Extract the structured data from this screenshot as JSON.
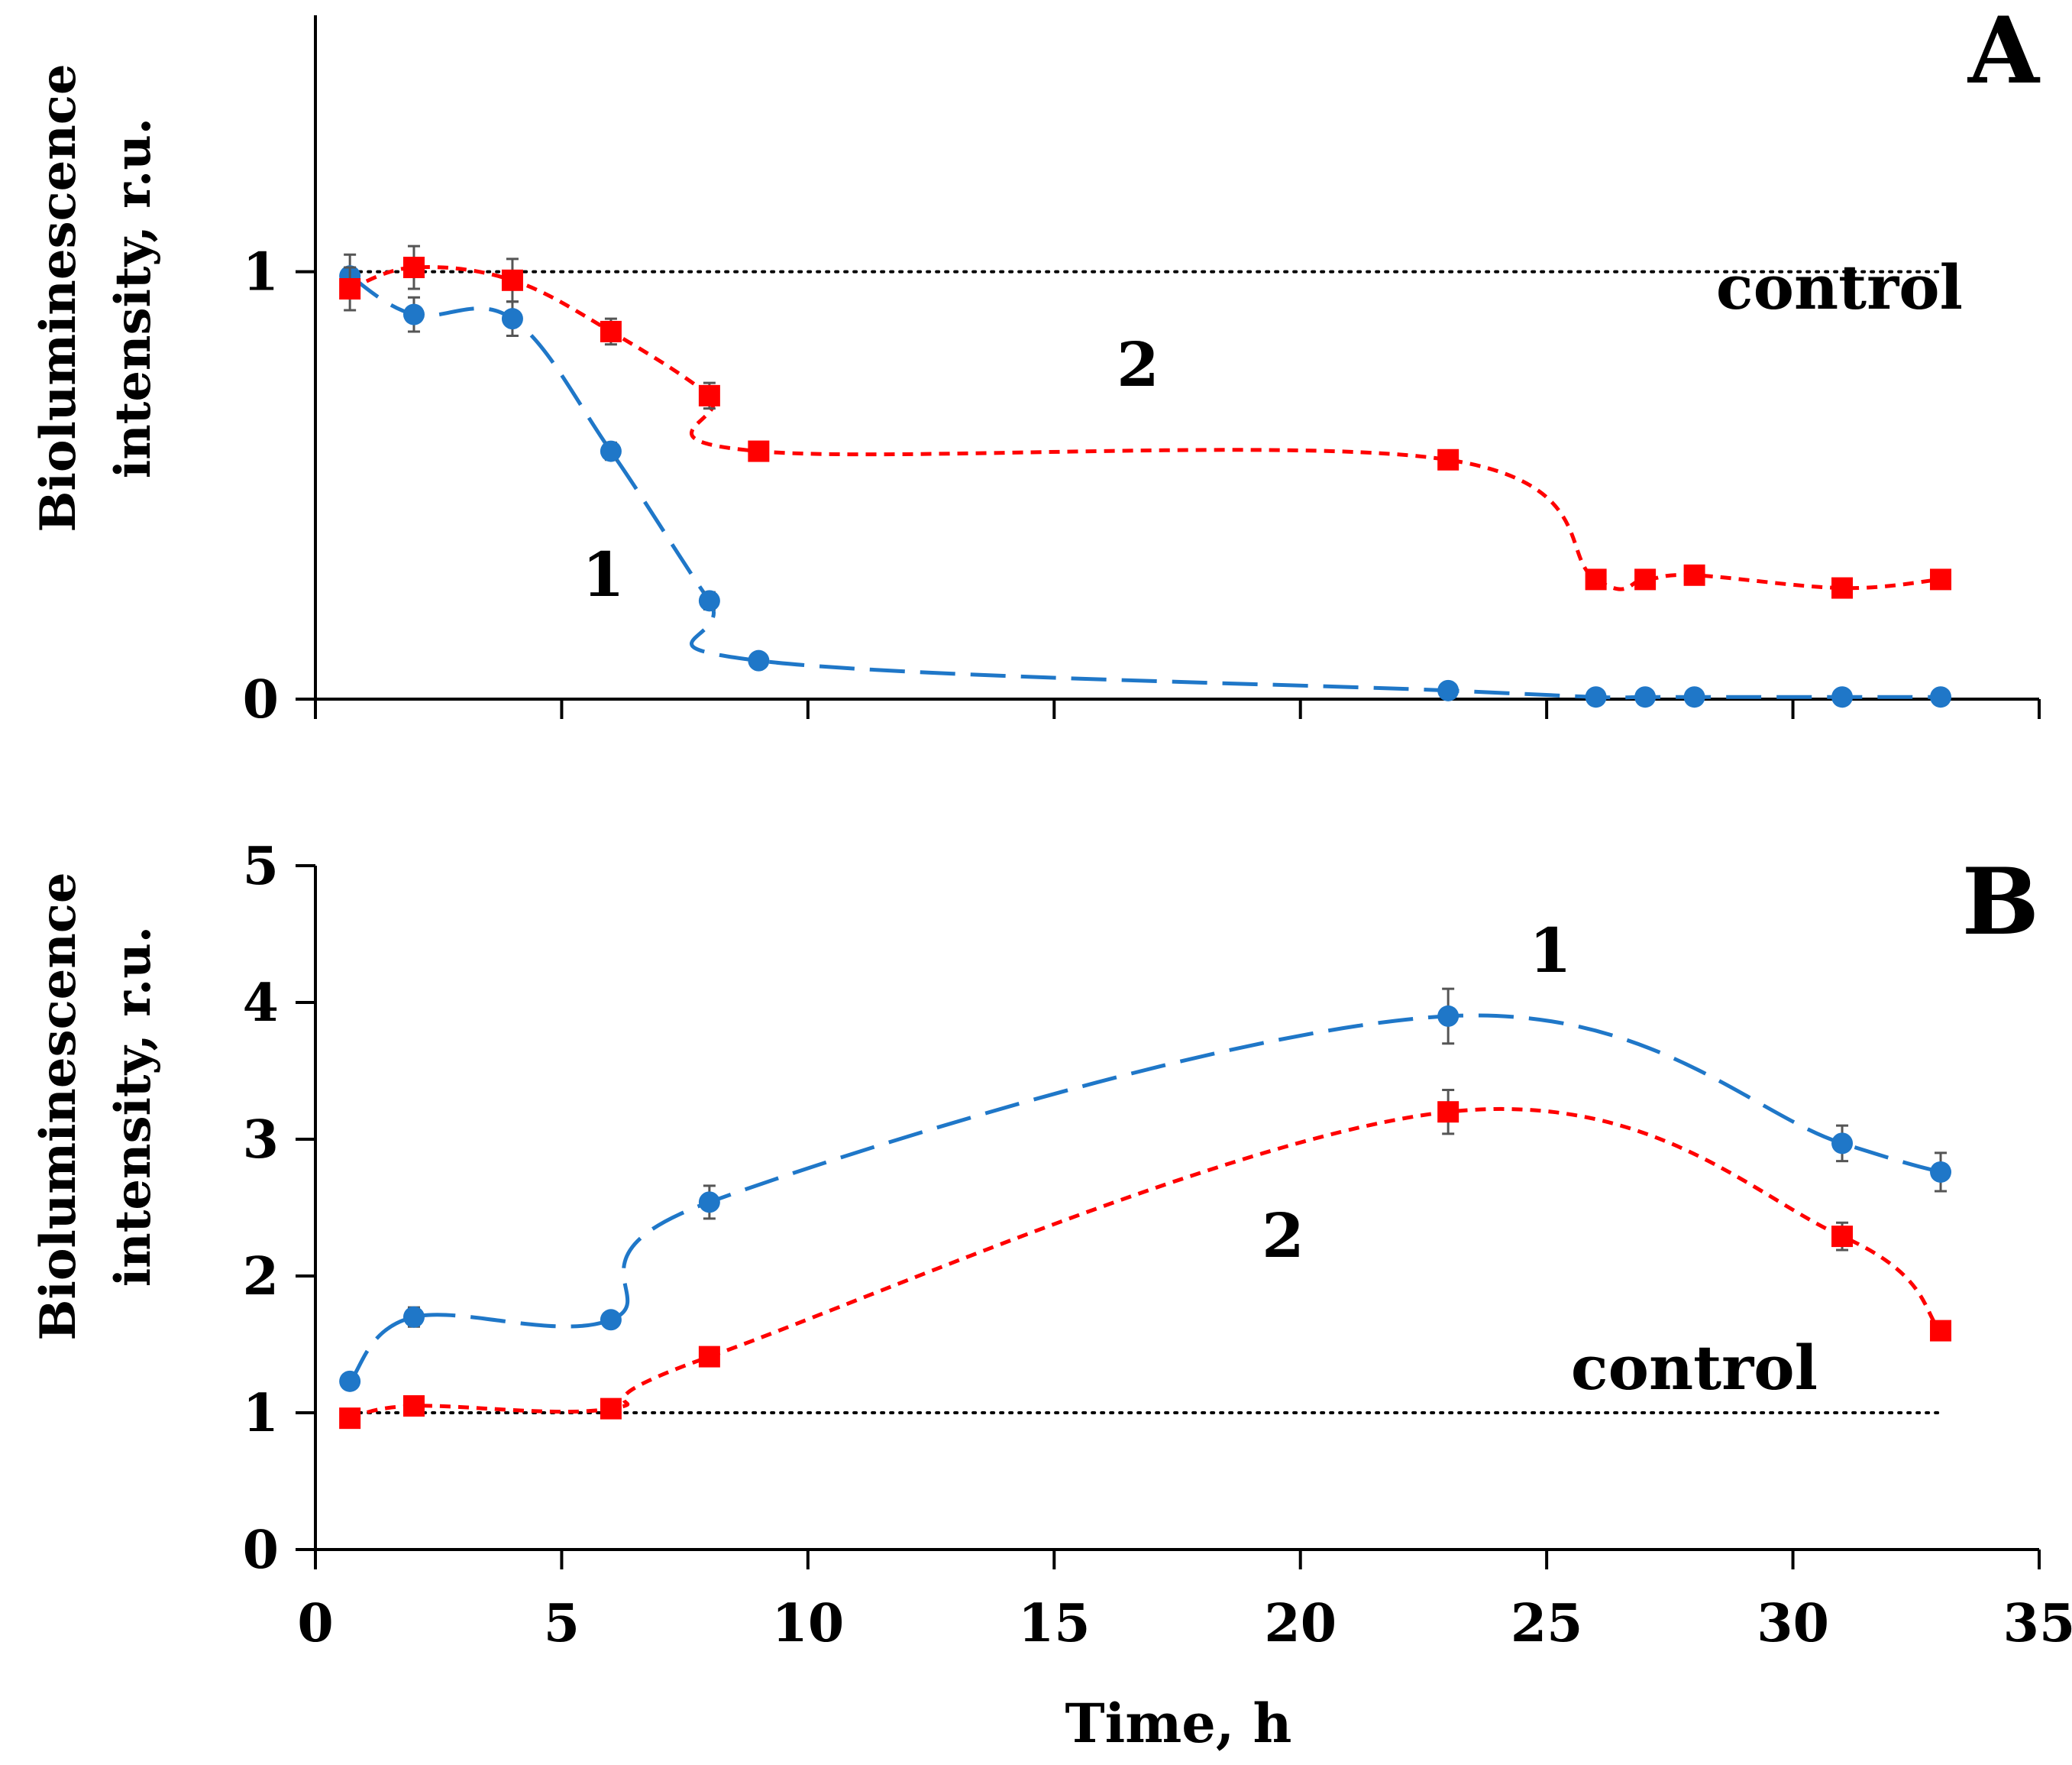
{
  "chart_data": [
    {
      "type": "line",
      "panel_label": "A",
      "ylabel_line1": "Bioluminescence",
      "ylabel_line2": "intensity, r.u.",
      "xlim": [
        0,
        35
      ],
      "ylim": [
        0,
        1.6
      ],
      "y_ticks": [
        "0",
        "1"
      ],
      "y_tick_values": [
        0,
        1
      ],
      "x_ticks": [
        0,
        5,
        10,
        15,
        20,
        25,
        30,
        35
      ],
      "control": {
        "label": "control",
        "value": 1
      },
      "series": [
        {
          "name": "1",
          "color": "#1f77c8",
          "marker": "circle",
          "x": [
            0.7,
            2,
            4,
            6,
            8,
            9,
            23,
            26,
            27,
            28,
            31,
            33
          ],
          "y": [
            0.99,
            0.9,
            0.89,
            0.58,
            0.23,
            0.09,
            0.02,
            0.005,
            0.005,
            0.005,
            0.005,
            0.005
          ],
          "err": [
            0.05,
            0.04,
            0.04,
            0.02,
            0.02,
            0.01,
            0.01,
            0,
            0,
            0,
            0,
            0
          ]
        },
        {
          "name": "2",
          "color": "#ff0000",
          "marker": "square",
          "x": [
            0.7,
            2,
            4,
            6,
            8,
            9,
            23,
            26,
            27,
            28,
            31,
            33
          ],
          "y": [
            0.96,
            1.01,
            0.98,
            0.86,
            0.71,
            0.58,
            0.56,
            0.28,
            0.28,
            0.29,
            0.26,
            0.28
          ],
          "err": [
            0.05,
            0.05,
            0.05,
            0.03,
            0.03,
            0.02,
            0.02,
            0.01,
            0.01,
            0.01,
            0.01,
            0.01
          ]
        }
      ]
    },
    {
      "type": "line",
      "panel_label": "B",
      "ylabel_line1": "Bioluminescence",
      "ylabel_line2": "intensity, r.u.",
      "xlabel": "Time, h",
      "xlim": [
        0,
        35
      ],
      "ylim": [
        0,
        5
      ],
      "y_ticks": [
        "0",
        "1",
        "2",
        "3",
        "4",
        "5"
      ],
      "y_tick_values": [
        0,
        1,
        2,
        3,
        4,
        5
      ],
      "x_ticks": [
        0,
        5,
        10,
        15,
        20,
        25,
        30,
        35
      ],
      "x_tick_labels": [
        "0",
        "5",
        "10",
        "15",
        "20",
        "25",
        "30",
        "35"
      ],
      "control": {
        "label": "control",
        "value": 1
      },
      "series": [
        {
          "name": "1",
          "color": "#1f77c8",
          "marker": "circle",
          "x": [
            0.7,
            2,
            6,
            8,
            23,
            31,
            33
          ],
          "y": [
            1.23,
            1.7,
            1.68,
            2.54,
            3.9,
            2.97,
            2.76
          ],
          "err": [
            0.04,
            0.07,
            0.05,
            0.12,
            0.2,
            0.13,
            0.14
          ]
        },
        {
          "name": "2",
          "color": "#ff0000",
          "marker": "square",
          "x": [
            0.7,
            2,
            6,
            8,
            23,
            31,
            33
          ],
          "y": [
            0.96,
            1.05,
            1.03,
            1.41,
            3.2,
            2.29,
            1.6
          ],
          "err": [
            0.03,
            0.03,
            0.03,
            0.05,
            0.16,
            0.1,
            0.04
          ]
        }
      ]
    }
  ]
}
